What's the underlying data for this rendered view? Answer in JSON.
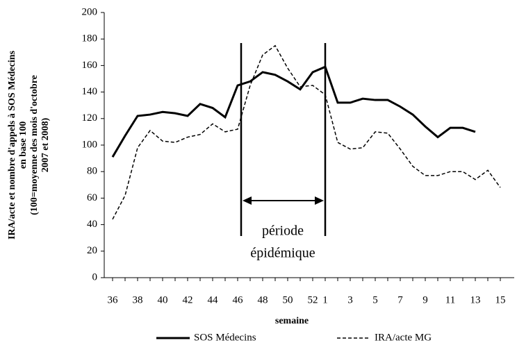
{
  "chart_data": {
    "type": "line",
    "y_label": [
      "IRA/acte et nombre d'appels à SOS Médecins",
      "en base 100",
      "(100=moyenne des mois d'octobre",
      "2007 et 2008)"
    ],
    "x_label": "semaine",
    "annotation": [
      "période",
      "épidémique"
    ],
    "categories": [
      "36",
      null,
      "38",
      null,
      "40",
      null,
      "42",
      null,
      "44",
      null,
      "46",
      null,
      "48",
      null,
      "50",
      null,
      "52",
      "1",
      null,
      "3",
      null,
      "5",
      null,
      "7",
      null,
      "9",
      null,
      "11",
      null,
      "13",
      null,
      "15"
    ],
    "series": [
      {
        "name": "SOS Médecins",
        "color": "#000000",
        "dash": "solid",
        "values": [
          91,
          107,
          122,
          123,
          125,
          124,
          122,
          131,
          128,
          121,
          145,
          148,
          155,
          153,
          148,
          142,
          155,
          159,
          132,
          132,
          135,
          134,
          134,
          129,
          123,
          114,
          106,
          113,
          113,
          110,
          null,
          null
        ]
      },
      {
        "name": "IRA/acte MG",
        "color": "#000000",
        "dash": "dashed",
        "values": [
          44,
          62,
          98,
          111,
          103,
          102,
          106,
          108,
          116,
          110,
          112,
          145,
          168,
          175,
          158,
          144,
          145,
          138,
          102,
          97,
          98,
          110,
          109,
          97,
          84,
          77,
          77,
          80,
          80,
          74,
          81,
          68
        ]
      }
    ],
    "ylim": [
      0,
      200
    ],
    "yticks": [
      0,
      20,
      40,
      60,
      80,
      100,
      120,
      140,
      160,
      180,
      200
    ],
    "grid": false
  }
}
